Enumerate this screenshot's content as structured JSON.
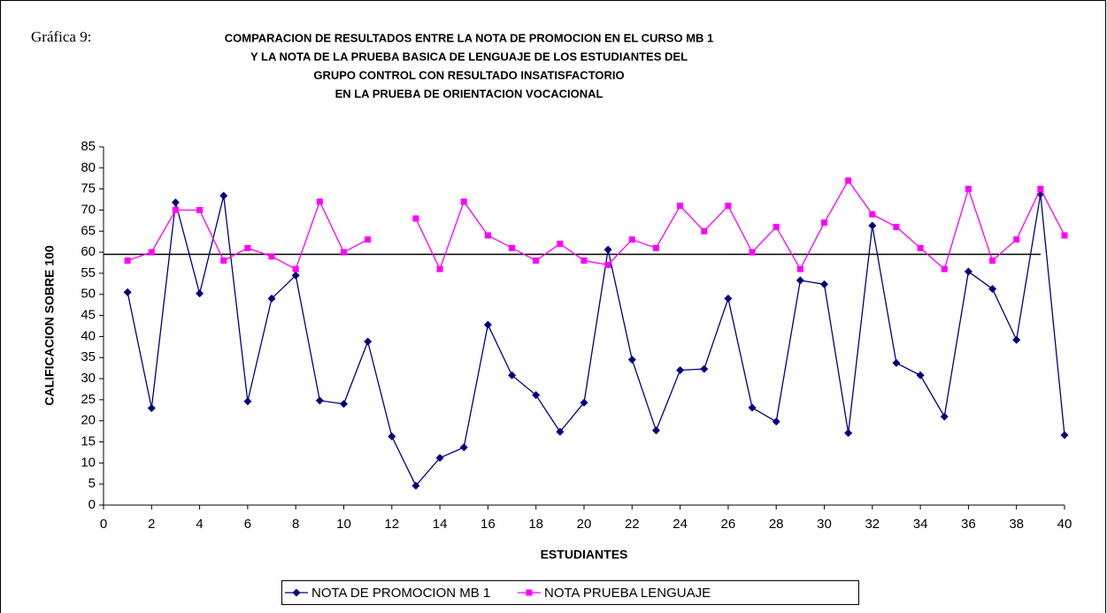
{
  "chart_data": {
    "type": "line",
    "label": "Gráfica 9:",
    "title": [
      "COMPARACION DE RESULTADOS ENTRE LA NOTA DE PROMOCION EN EL CURSO MB 1",
      "Y LA NOTA DE LA PRUEBA BASICA DE LENGUAJE DE LOS ESTUDIANTES DEL",
      "GRUPO CONTROL CON RESULTADO  INSATISFACTORIO",
      "EN LA PRUEBA DE ORIENTACION VOCACIONAL"
    ],
    "x_label": "ESTUDIANTES",
    "y_label": "CALIFICACION SOBRE 100",
    "x": [
      1,
      2,
      3,
      4,
      5,
      6,
      7,
      8,
      9,
      10,
      11,
      12,
      13,
      14,
      15,
      16,
      17,
      18,
      19,
      20,
      21,
      22,
      23,
      24,
      25,
      26,
      27,
      28,
      29,
      30,
      31,
      32,
      33,
      34,
      35,
      36,
      37,
      38,
      39,
      40
    ],
    "series": [
      {
        "name": "NOTA DE PROMOCION MB 1",
        "color": "#000080",
        "marker": "diamond",
        "values": [
          50.5,
          23,
          71.8,
          50.2,
          73.4,
          24.6,
          49,
          54.5,
          24.8,
          24,
          38.8,
          16.3,
          4.6,
          11.2,
          13.7,
          42.8,
          30.8,
          26.1,
          17.4,
          24.3,
          60.6,
          34.5,
          17.7,
          32,
          32.3,
          49,
          23.1,
          19.8,
          53.3,
          52.4,
          17.1,
          66.3,
          33.7,
          30.8,
          21,
          55.4,
          51.3,
          39.2,
          73.8,
          16.6
        ]
      },
      {
        "name": "NOTA PRUEBA LENGUAJE",
        "color": "#ff00ff",
        "marker": "square",
        "values": [
          58,
          60,
          70,
          70,
          58,
          61,
          59,
          56,
          72,
          60,
          63,
          null,
          68,
          56,
          72,
          64,
          61,
          58,
          62,
          58,
          57,
          63,
          61,
          71,
          65,
          71,
          60,
          66,
          56,
          67,
          77,
          69,
          66,
          61,
          56,
          75,
          58,
          63,
          75,
          64
        ]
      }
    ],
    "reference_line": {
      "y": 59.5,
      "x": [
        0,
        39
      ],
      "color": "#000000"
    },
    "xlim": [
      0,
      40
    ],
    "xticks": [
      0,
      2,
      4,
      6,
      8,
      10,
      12,
      14,
      16,
      18,
      20,
      22,
      24,
      26,
      28,
      30,
      32,
      34,
      36,
      38,
      40
    ],
    "ylim": [
      0,
      85
    ],
    "yticks": [
      0,
      5,
      10,
      15,
      20,
      25,
      30,
      35,
      40,
      45,
      50,
      55,
      60,
      65,
      70,
      75,
      80,
      85
    ],
    "grid": false,
    "legend": "bottom"
  }
}
